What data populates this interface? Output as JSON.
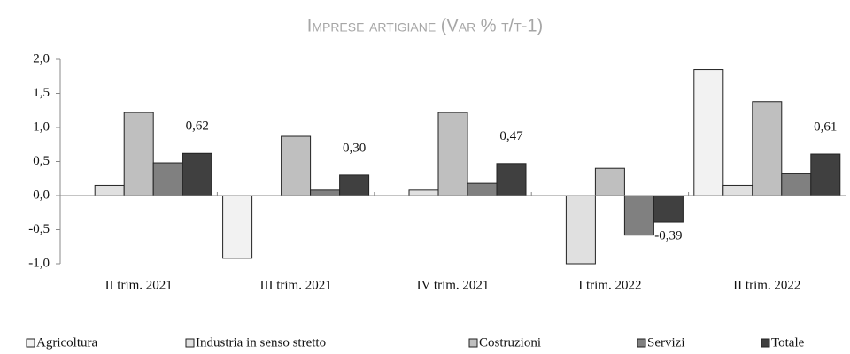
{
  "chart_data": {
    "type": "bar",
    "title": "Imprese artigiane (Var % t/t-1)",
    "categories": [
      "II trim. 2021",
      "III trim. 2021",
      "IV trim. 2021",
      "I trim. 2022",
      "II trim. 2022"
    ],
    "series": [
      {
        "name": "Agricoltura",
        "color": "#f2f2f2",
        "values": [
          0.0,
          -0.92,
          0.0,
          0.0,
          1.85
        ]
      },
      {
        "name": "Industria in senso stretto",
        "color": "#e0e0e0",
        "values": [
          0.15,
          0.0,
          0.08,
          -1.0,
          0.15
        ]
      },
      {
        "name": "Costruzioni",
        "color": "#bfbfbf",
        "values": [
          1.22,
          0.87,
          1.22,
          0.4,
          1.38
        ]
      },
      {
        "name": "Servizi",
        "color": "#808080",
        "values": [
          0.48,
          0.08,
          0.18,
          -0.58,
          0.32
        ]
      },
      {
        "name": "Totale",
        "color": "#404040",
        "values": [
          0.62,
          0.3,
          0.47,
          -0.39,
          0.61
        ],
        "value_labels": [
          "0,62",
          "0,30",
          "0,47",
          "-0,39",
          "0,61"
        ]
      }
    ],
    "ylim": [
      -1.0,
      2.0
    ],
    "yticks": [
      {
        "value": -1.0,
        "label": "-1,0"
      },
      {
        "value": -0.5,
        "label": "-0,5"
      },
      {
        "value": 0.0,
        "label": "0,0"
      },
      {
        "value": 0.5,
        "label": "0,5"
      },
      {
        "value": 1.0,
        "label": "1,0"
      },
      {
        "value": 1.5,
        "label": "1,5"
      },
      {
        "value": 2.0,
        "label": "2,0"
      }
    ],
    "grid": false,
    "legend": "bottom"
  }
}
